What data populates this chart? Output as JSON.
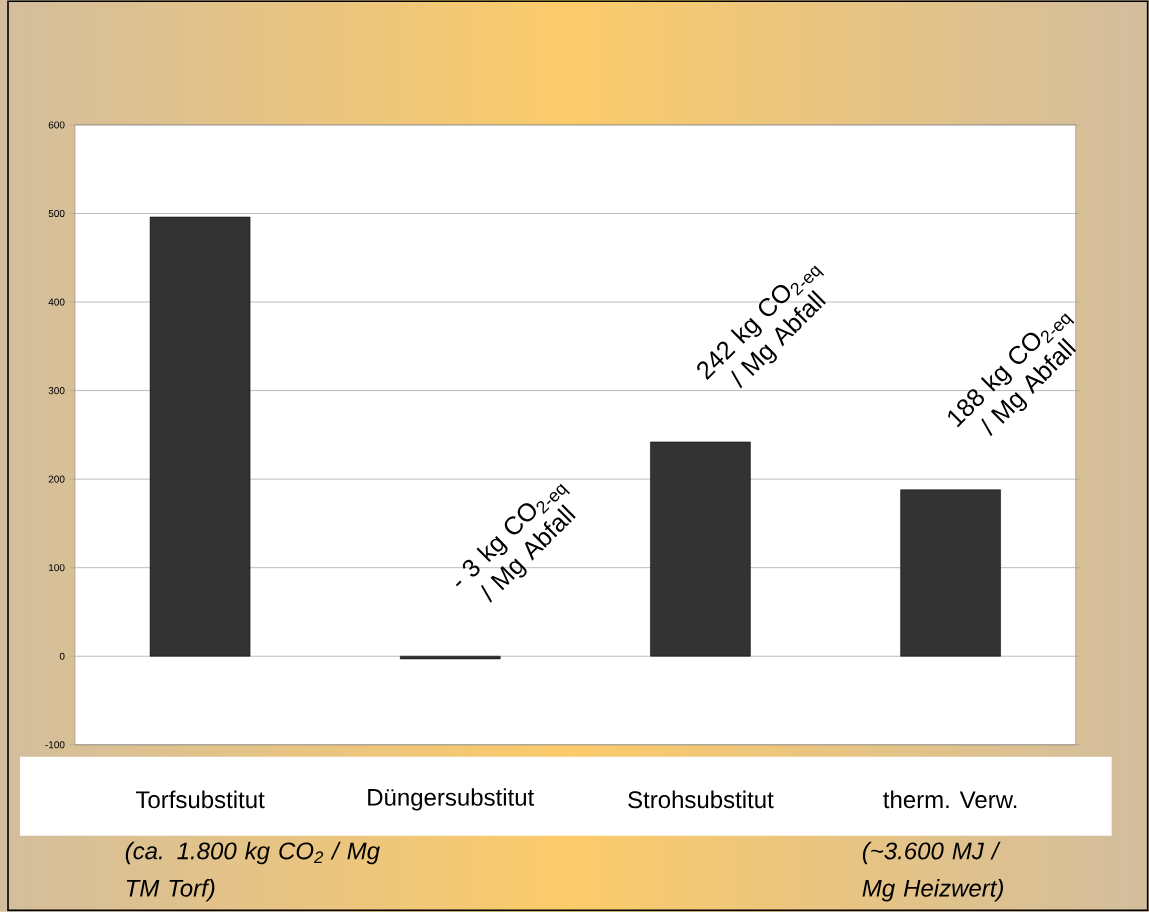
{
  "chart_data": {
    "type": "bar",
    "categories": [
      "Torfsubstitut",
      "Düngersubstitut",
      "Strohsubstitut",
      "therm. Verw."
    ],
    "values": [
      496,
      -3,
      242,
      188
    ],
    "color": "#333333",
    "value_labels": [
      null,
      "- 3 kg CO$_{2-eq}$ / Mg Abfall",
      "242 kg CO$_{2-eq}$ / Mg Abfall",
      "188 kg CO$_{2-eq}$ / Mg Abfall"
    ],
    "ylim": [
      -100,
      600
    ],
    "yticks": [
      -100,
      0,
      100,
      200,
      300,
      400,
      500,
      600
    ],
    "grid": "y",
    "annotations": [
      "(ca. 1.800 kg CO$_{2}$ / Mg TM Torf)",
      "(~3.600 MJ / Mg Heizwert)"
    ]
  }
}
